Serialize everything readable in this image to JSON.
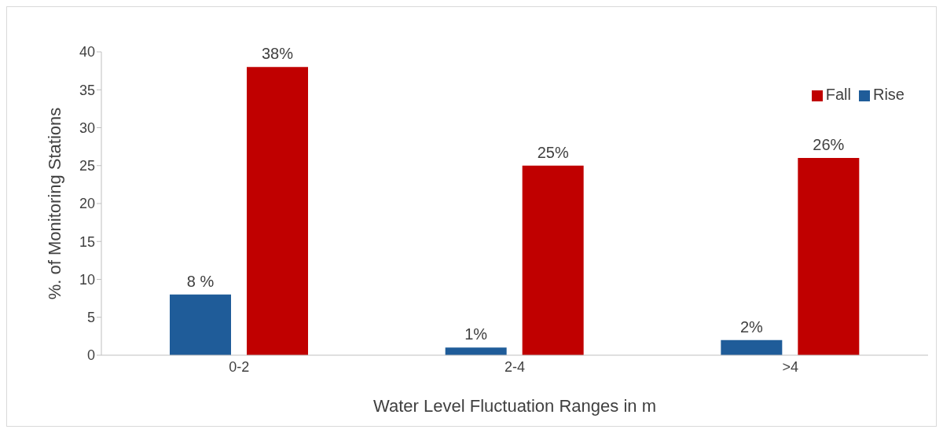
{
  "chart_data": {
    "type": "bar",
    "xlabel": "Water Level Fluctuation Ranges in m",
    "ylabel": "%. of Monitoring Stations",
    "categories": [
      "0-2",
      "2-4",
      ">4"
    ],
    "series": [
      {
        "name": "Rise",
        "color": "#1f5c99",
        "values": [
          8,
          1,
          2
        ],
        "value_labels": [
          "8 %",
          "1%",
          "2%"
        ]
      },
      {
        "name": "Fall",
        "color": "#c00000",
        "values": [
          38,
          25,
          26
        ],
        "value_labels": [
          "38%",
          "25%",
          "26%"
        ]
      }
    ],
    "ylim": [
      0,
      40
    ],
    "yticks": [
      0,
      5,
      10,
      15,
      20,
      25,
      30,
      35,
      40
    ],
    "grid": false,
    "legend": "top right"
  }
}
